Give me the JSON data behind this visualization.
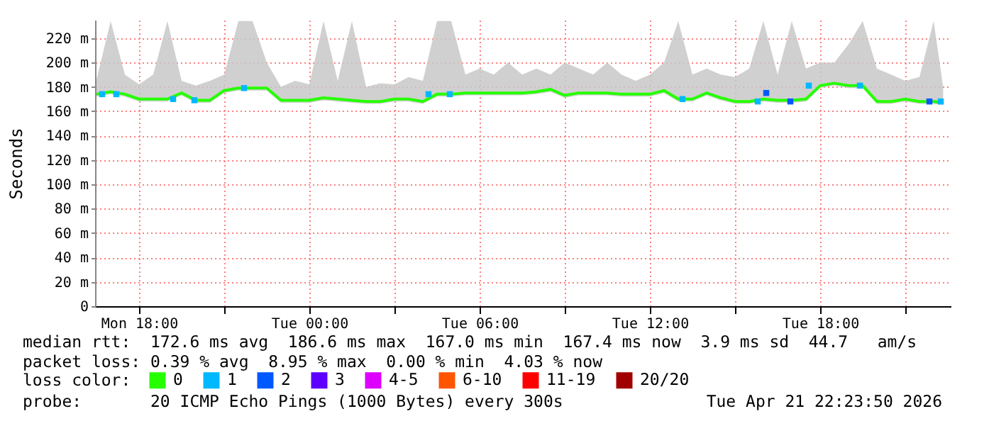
{
  "chart_data": {
    "type": "line",
    "ylabel": "Seconds",
    "legend": "bottom",
    "legend_title": "loss color:",
    "grid": true,
    "annotations": [
      "median rtt:  172.6 ms avg  186.6 ms max  167.0 ms min  167.4 ms now  3.9 ms sd  44.7   am/s",
      "packet loss: 0.39 % avg  8.95 % max  0.00 % min  4.03 % now",
      "probe:       20 ICMP Echo Pings (1000 Bytes) every 300s",
      "Tue Apr 21 22:23:50 2026"
    ],
    "xlim": [
      "2026-04-20T16:27",
      "2026-04-21T22:36"
    ],
    "xticks": [
      {
        "value": "2026-04-20T18:00",
        "label": "Mon 18:00"
      },
      {
        "value": "2026-04-20T21:00",
        "label": null
      },
      {
        "value": "2026-04-21T00:00",
        "label": "Tue 00:00"
      },
      {
        "value": "2026-04-21T03:00",
        "label": null
      },
      {
        "value": "2026-04-21T06:00",
        "label": "Tue 06:00"
      },
      {
        "value": "2026-04-21T09:00",
        "label": null
      },
      {
        "value": "2026-04-21T12:00",
        "label": "Tue 12:00"
      },
      {
        "value": "2026-04-21T15:00",
        "label": null
      },
      {
        "value": "2026-04-21T18:00",
        "label": "Tue 18:00"
      },
      {
        "value": "2026-04-21T21:00",
        "label": null
      }
    ],
    "ylim": [
      0,
      235
    ],
    "yticks": [
      0,
      {
        "value": 20,
        "label": "20 m"
      },
      {
        "value": 40,
        "label": "40 m"
      },
      {
        "value": 60,
        "label": "60 m"
      },
      {
        "value": 80,
        "label": "80 m"
      },
      {
        "value": 100,
        "label": "100 m"
      },
      {
        "value": 120,
        "label": "120 m"
      },
      {
        "value": 140,
        "label": "140 m"
      },
      {
        "value": 160,
        "label": "160 m"
      },
      {
        "value": 180,
        "label": "180 m"
      },
      {
        "value": 200,
        "label": "200 m"
      },
      {
        "value": 220,
        "label": "220 m"
      }
    ],
    "x": [
      "2026-04-20T16:30",
      "2026-04-20T17:00",
      "2026-04-20T17:30",
      "2026-04-20T18:00",
      "2026-04-20T18:30",
      "2026-04-20T19:00",
      "2026-04-20T19:30",
      "2026-04-20T20:00",
      "2026-04-20T20:30",
      "2026-04-20T21:00",
      "2026-04-20T21:30",
      "2026-04-20T22:00",
      "2026-04-20T22:30",
      "2026-04-20T23:00",
      "2026-04-20T23:30",
      "2026-04-21T00:00",
      "2026-04-21T00:30",
      "2026-04-21T01:00",
      "2026-04-21T01:30",
      "2026-04-21T02:00",
      "2026-04-21T02:30",
      "2026-04-21T03:00",
      "2026-04-21T03:30",
      "2026-04-21T04:00",
      "2026-04-21T04:30",
      "2026-04-21T05:00",
      "2026-04-21T05:30",
      "2026-04-21T06:00",
      "2026-04-21T06:30",
      "2026-04-21T07:00",
      "2026-04-21T07:30",
      "2026-04-21T08:00",
      "2026-04-21T08:30",
      "2026-04-21T09:00",
      "2026-04-21T09:30",
      "2026-04-21T10:00",
      "2026-04-21T10:30",
      "2026-04-21T11:00",
      "2026-04-21T11:30",
      "2026-04-21T12:00",
      "2026-04-21T12:30",
      "2026-04-21T13:00",
      "2026-04-21T13:30",
      "2026-04-21T14:00",
      "2026-04-21T14:30",
      "2026-04-21T15:00",
      "2026-04-21T15:30",
      "2026-04-21T16:00",
      "2026-04-21T16:30",
      "2026-04-21T17:00",
      "2026-04-21T17:30",
      "2026-04-21T18:00",
      "2026-04-21T18:30",
      "2026-04-21T19:00",
      "2026-04-21T19:30",
      "2026-04-21T20:00",
      "2026-04-21T20:30",
      "2026-04-21T21:00",
      "2026-04-21T21:30",
      "2026-04-21T22:00",
      "2026-04-21T22:20"
    ],
    "series": [
      {
        "name": "0",
        "color": "#26ff00",
        "values": [
          174,
          176,
          174,
          170,
          170,
          170,
          175,
          169,
          169,
          177,
          179,
          179,
          179,
          169,
          169,
          169,
          171,
          170,
          169,
          168,
          168,
          170,
          170,
          168,
          174,
          174,
          175,
          175,
          175,
          175,
          175,
          176,
          178,
          173,
          175,
          175,
          175,
          174,
          174,
          174,
          177,
          170,
          170,
          175,
          171,
          168,
          168,
          170,
          169,
          169,
          170,
          181,
          183,
          181,
          181,
          168,
          168,
          170,
          168,
          168,
          167
        ],
        "lower": [
          172,
          174,
          172,
          168,
          168,
          168,
          173,
          167,
          167,
          175,
          177,
          177,
          177,
          167,
          167,
          167,
          169,
          168,
          167,
          166,
          166,
          168,
          168,
          166,
          172,
          172,
          173,
          173,
          173,
          173,
          173,
          174,
          176,
          171,
          173,
          173,
          173,
          172,
          172,
          172,
          175,
          168,
          168,
          173,
          169,
          166,
          166,
          168,
          167,
          167,
          168,
          179,
          181,
          179,
          179,
          166,
          166,
          168,
          166,
          166,
          165
        ],
        "upper": [
          186,
          234,
          190,
          182,
          190,
          234,
          185,
          181,
          185,
          190,
          234,
          234,
          200,
          180,
          185,
          182,
          234,
          185,
          234,
          180,
          183,
          182,
          188,
          185,
          234,
          234,
          190,
          195,
          190,
          200,
          190,
          195,
          190,
          200,
          195,
          190,
          200,
          190,
          185,
          190,
          200,
          234,
          190,
          195,
          190,
          188,
          195,
          234,
          190,
          234,
          195,
          200,
          200,
          215,
          234,
          195,
          190,
          185,
          188,
          234,
          180
        ]
      },
      {
        "name": "1",
        "type": "scatter",
        "marker": "square",
        "color": "#00b8ff",
        "x": [
          "2026-04-20T16:42",
          "2026-04-20T17:12",
          "2026-04-20T19:12",
          "2026-04-20T19:57",
          "2026-04-20T21:42",
          "2026-04-21T04:12",
          "2026-04-21T04:57",
          "2026-04-21T13:09",
          "2026-04-21T15:48",
          "2026-04-21T17:36",
          "2026-04-21T19:24",
          "2026-04-21T22:15"
        ],
        "values": [
          174,
          174,
          170,
          169,
          179,
          174,
          174,
          170,
          168,
          181,
          181,
          168
        ]
      },
      {
        "name": "2",
        "type": "scatter",
        "marker": "square",
        "color": "#0059ff",
        "x": [
          "2026-04-21T16:06",
          "2026-04-21T16:57",
          "2026-04-21T21:51"
        ],
        "values": [
          175,
          168,
          168
        ]
      },
      {
        "name": "3",
        "color": "#5e00ff",
        "values": [
          null,
          null,
          null,
          null,
          null,
          null,
          null,
          null,
          null,
          null,
          null,
          null,
          null,
          null,
          null,
          null,
          null,
          null,
          null,
          null,
          null,
          null,
          null,
          null,
          null,
          null,
          null,
          null,
          null,
          null,
          null,
          null,
          null,
          null,
          null,
          null,
          null,
          null,
          null,
          null,
          null,
          null,
          null,
          null,
          null,
          null,
          null,
          null,
          null,
          null,
          null,
          null,
          null,
          null,
          null,
          null,
          null,
          null,
          null,
          null,
          null
        ]
      },
      {
        "name": "4-5",
        "color": "#dd00ff",
        "values": [
          null,
          null,
          null,
          null,
          null,
          null,
          null,
          null,
          null,
          null,
          null,
          null,
          null,
          null,
          null,
          null,
          null,
          null,
          null,
          null,
          null,
          null,
          null,
          null,
          null,
          null,
          null,
          null,
          null,
          null,
          null,
          null,
          null,
          null,
          null,
          null,
          null,
          null,
          null,
          null,
          null,
          null,
          null,
          null,
          null,
          null,
          null,
          null,
          null,
          null,
          null,
          null,
          null,
          null,
          null,
          null,
          null,
          null,
          null,
          null,
          null
        ]
      },
      {
        "name": "6-10",
        "color": "#ff5500",
        "values": [
          null,
          null,
          null,
          null,
          null,
          null,
          null,
          null,
          null,
          null,
          null,
          null,
          null,
          null,
          null,
          null,
          null,
          null,
          null,
          null,
          null,
          null,
          null,
          null,
          null,
          null,
          null,
          null,
          null,
          null,
          null,
          null,
          null,
          null,
          null,
          null,
          null,
          null,
          null,
          null,
          null,
          null,
          null,
          null,
          null,
          null,
          null,
          null,
          null,
          null,
          null,
          null,
          null,
          null,
          null,
          null,
          null,
          null,
          null,
          null,
          null
        ]
      },
      {
        "name": "11-19",
        "color": "#ff0000",
        "values": [
          null,
          null,
          null,
          null,
          null,
          null,
          null,
          null,
          null,
          null,
          null,
          null,
          null,
          null,
          null,
          null,
          null,
          null,
          null,
          null,
          null,
          null,
          null,
          null,
          null,
          null,
          null,
          null,
          null,
          null,
          null,
          null,
          null,
          null,
          null,
          null,
          null,
          null,
          null,
          null,
          null,
          null,
          null,
          null,
          null,
          null,
          null,
          null,
          null,
          null,
          null,
          null,
          null,
          null,
          null,
          null,
          null,
          null,
          null,
          null,
          null
        ]
      },
      {
        "name": "20/20",
        "color": "#a10000",
        "values": [
          null,
          null,
          null,
          null,
          null,
          null,
          null,
          null,
          null,
          null,
          null,
          null,
          null,
          null,
          null,
          null,
          null,
          null,
          null,
          null,
          null,
          null,
          null,
          null,
          null,
          null,
          null,
          null,
          null,
          null,
          null,
          null,
          null,
          null,
          null,
          null,
          null,
          null,
          null,
          null,
          null,
          null,
          null,
          null,
          null,
          null,
          null,
          null,
          null,
          null,
          null,
          null,
          null,
          null,
          null,
          null,
          null,
          null,
          null,
          null,
          null
        ]
      }
    ]
  }
}
